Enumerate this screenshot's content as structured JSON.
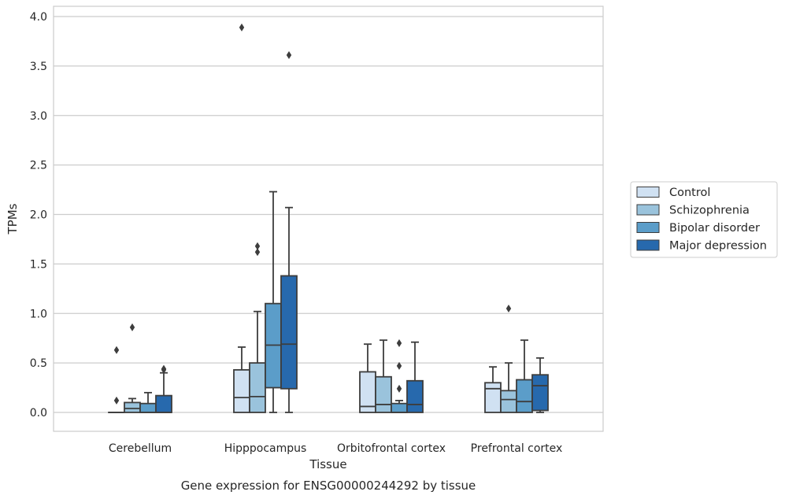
{
  "chart_data": {
    "type": "box",
    "title": "",
    "caption": "Gene expression for ENSG00000244292 by tissue",
    "xlabel": "Tissue",
    "ylabel": "TPMs",
    "ylim": [
      -0.19,
      4.09
    ],
    "yticks": [
      0.0,
      0.5,
      1.0,
      1.5,
      2.0,
      2.5,
      3.0,
      3.5,
      4.0
    ],
    "ytick_labels": [
      "0.0",
      "0.5",
      "1.0",
      "1.5",
      "2.0",
      "2.5",
      "3.0",
      "3.5",
      "4.0"
    ],
    "grid": "horizontal",
    "legend_position": "right",
    "categories": [
      "Cerebellum",
      "Hipppocampus",
      "Orbitofrontal cortex",
      "Prefrontal cortex"
    ],
    "series": [
      {
        "name": "Control",
        "color": "#d0e1f2",
        "boxes": [
          {
            "q1": 0.0,
            "median": 0.0,
            "q3": 0.0,
            "whisker_low": 0.0,
            "whisker_high": 0.0,
            "outliers": [
              0.12,
              0.63
            ]
          },
          {
            "q1": 0.0,
            "median": 0.15,
            "q3": 0.43,
            "whisker_low": 0.0,
            "whisker_high": 0.66,
            "outliers": [
              3.89
            ]
          },
          {
            "q1": 0.0,
            "median": 0.06,
            "q3": 0.41,
            "whisker_low": 0.0,
            "whisker_high": 0.69,
            "outliers": []
          },
          {
            "q1": 0.0,
            "median": 0.24,
            "q3": 0.3,
            "whisker_low": 0.0,
            "whisker_high": 0.46,
            "outliers": []
          }
        ]
      },
      {
        "name": "Schizophrenia",
        "color": "#9ac3dc",
        "boxes": [
          {
            "q1": 0.0,
            "median": 0.04,
            "q3": 0.1,
            "whisker_low": 0.0,
            "whisker_high": 0.14,
            "outliers": [
              0.86
            ]
          },
          {
            "q1": 0.0,
            "median": 0.16,
            "q3": 0.5,
            "whisker_low": 0.0,
            "whisker_high": 1.02,
            "outliers": [
              1.62,
              1.68
            ]
          },
          {
            "q1": 0.0,
            "median": 0.08,
            "q3": 0.36,
            "whisker_low": 0.0,
            "whisker_high": 0.73,
            "outliers": []
          },
          {
            "q1": 0.0,
            "median": 0.13,
            "q3": 0.22,
            "whisker_low": 0.0,
            "whisker_high": 0.5,
            "outliers": [
              1.05
            ]
          }
        ]
      },
      {
        "name": "Bipolar disorder",
        "color": "#5b9dc9",
        "boxes": [
          {
            "q1": 0.0,
            "median": 0.0,
            "q3": 0.09,
            "whisker_low": 0.0,
            "whisker_high": 0.2,
            "outliers": []
          },
          {
            "q1": 0.25,
            "median": 0.68,
            "q3": 1.1,
            "whisker_low": 0.0,
            "whisker_high": 2.23,
            "outliers": []
          },
          {
            "q1": 0.0,
            "median": 0.0,
            "q3": 0.09,
            "whisker_low": 0.0,
            "whisker_high": 0.12,
            "outliers": [
              0.24,
              0.47,
              0.7
            ]
          },
          {
            "q1": 0.0,
            "median": 0.11,
            "q3": 0.33,
            "whisker_low": 0.0,
            "whisker_high": 0.73,
            "outliers": []
          }
        ]
      },
      {
        "name": "Major depression",
        "color": "#2769ad",
        "boxes": [
          {
            "q1": 0.0,
            "median": 0.0,
            "q3": 0.17,
            "whisker_low": 0.0,
            "whisker_high": 0.4,
            "outliers": [
              0.43,
              0.44
            ]
          },
          {
            "q1": 0.24,
            "median": 0.69,
            "q3": 1.38,
            "whisker_low": 0.0,
            "whisker_high": 2.07,
            "outliers": [
              3.61
            ]
          },
          {
            "q1": 0.0,
            "median": 0.08,
            "q3": 0.32,
            "whisker_low": 0.0,
            "whisker_high": 0.71,
            "outliers": []
          },
          {
            "q1": 0.02,
            "median": 0.27,
            "q3": 0.38,
            "whisker_low": 0.0,
            "whisker_high": 0.55,
            "outliers": []
          }
        ]
      }
    ]
  }
}
